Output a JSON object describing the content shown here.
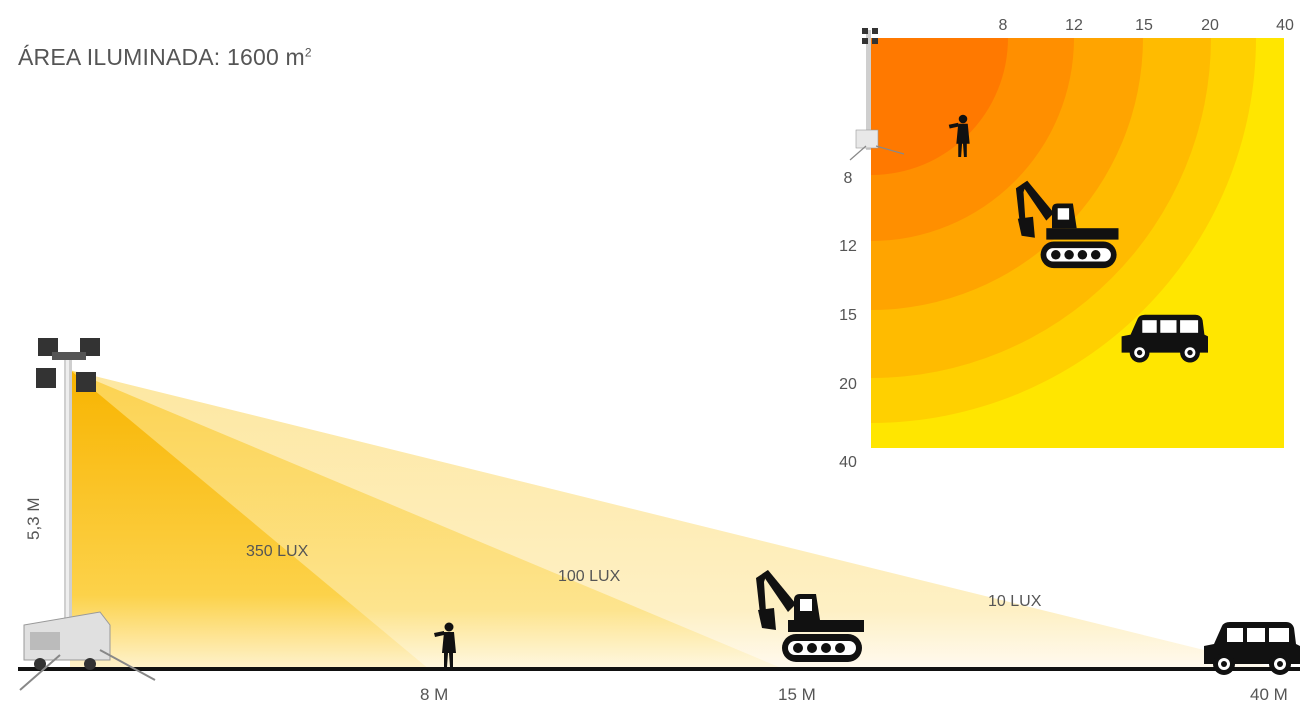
{
  "title": {
    "text": "ÁREA ILUMINADA: 1600 m",
    "sup": "2"
  },
  "side_view": {
    "height_label": "5,3 M",
    "zones": [
      {
        "lux_label": "350 LUX",
        "distance_label": "8 M",
        "distance_m": 8,
        "color": "#f9bf1a"
      },
      {
        "lux_label": "100 LUX",
        "distance_label": "15 M",
        "distance_m": 15,
        "color": "#fbd55a"
      },
      {
        "lux_label": "10 LUX",
        "distance_label": "40 M",
        "distance_m": 40,
        "color": "#fde89c"
      }
    ],
    "objects": [
      "person-icon",
      "excavator-icon",
      "car-icon",
      "light-tower-icon"
    ]
  },
  "top_view": {
    "x_ticks": [
      "8",
      "12",
      "15",
      "20",
      "40"
    ],
    "y_ticks": [
      "8",
      "12",
      "15",
      "20",
      "40"
    ],
    "ring_colors": [
      "#ff7900",
      "#ff8f00",
      "#ffa400",
      "#ffbb00",
      "#ffd000",
      "#ffe600"
    ],
    "objects": [
      "person-icon",
      "excavator-icon",
      "car-icon",
      "light-tower-icon"
    ]
  }
}
